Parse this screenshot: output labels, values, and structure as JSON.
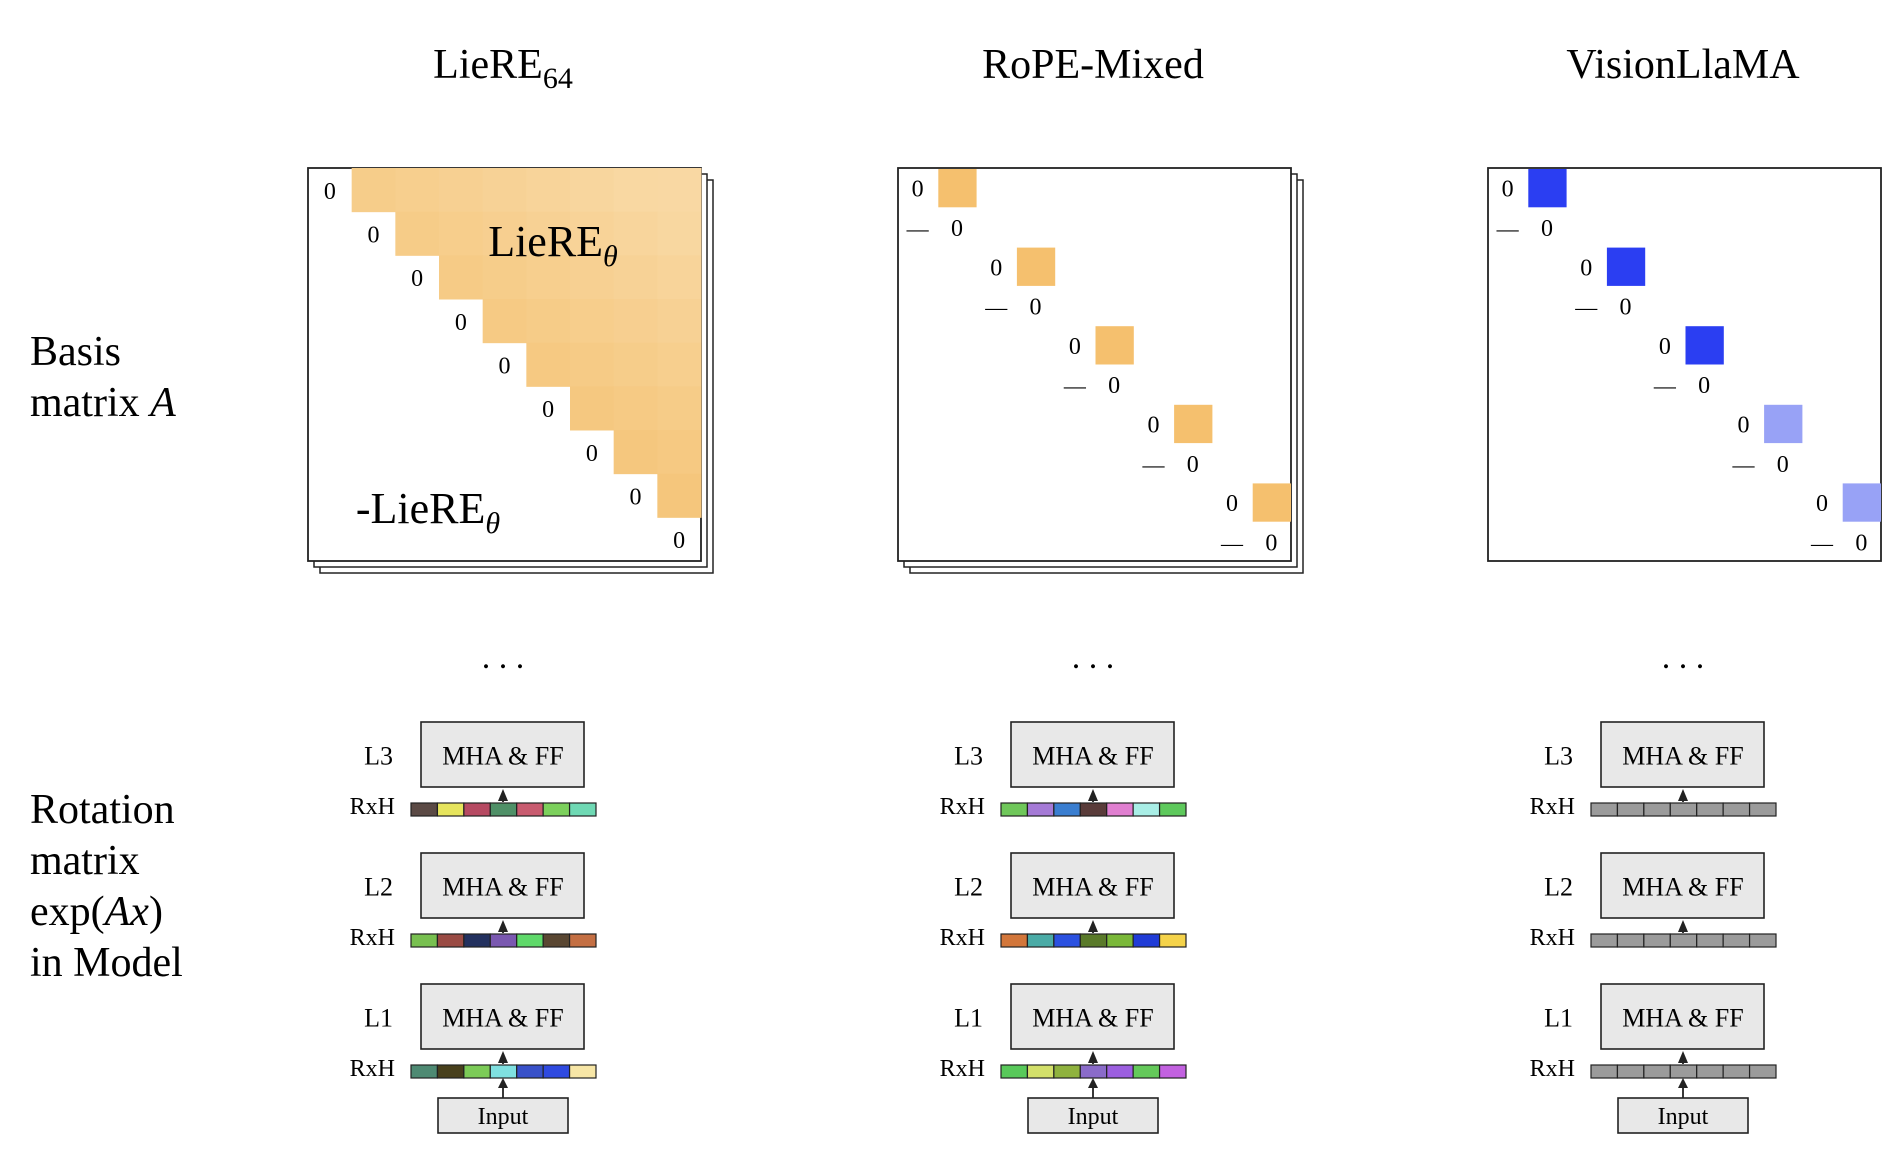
{
  "columns": [
    {
      "title": "LieRE",
      "title_subscript": "64",
      "matrix": {
        "style": "full",
        "upper_label": "LieRE",
        "lower_label": "-LieRE",
        "label_subscript": "θ",
        "diag": "0",
        "size": 9,
        "stacked": true
      },
      "block_colors": [],
      "layers": [
        "L3",
        "L2",
        "L1"
      ],
      "rh_label": "RxH",
      "mha_label": "MHA & FF",
      "input_label": "Input",
      "bars": [
        [
          "#5b4a45",
          "#e6e45d",
          "#b64a62",
          "#4f9067",
          "#c85b6f",
          "#7cd05c",
          "#6fd9b4"
        ],
        [
          "#78c050",
          "#9a4b44",
          "#23315f",
          "#7a58b0",
          "#5fd96a",
          "#5a4732",
          "#c46f43"
        ],
        [
          "#4e8a73",
          "#48401c",
          "#7ccb57",
          "#7fe0e0",
          "#3851c9",
          "#2f4ae0",
          "#f7e6a6"
        ]
      ]
    },
    {
      "title": "RoPE-Mixed",
      "title_subscript": "",
      "matrix": {
        "style": "block",
        "diag": "0",
        "neg": "—",
        "size": 10,
        "stacked": true
      },
      "block_colors": [
        "#f5c06e",
        "#f5c06e",
        "#f5c06e",
        "#f5c06e",
        "#f5c06e"
      ],
      "layers": [
        "L3",
        "L2",
        "L1"
      ],
      "rh_label": "RxH",
      "mha_label": "MHA & FF",
      "input_label": "Input",
      "bars": [
        [
          "#6fc75a",
          "#a57ad6",
          "#3a7ed0",
          "#5a3c3a",
          "#e07fd0",
          "#a9eee6",
          "#5ec95c"
        ],
        [
          "#d2763a",
          "#4aaba6",
          "#2b51e0",
          "#5a7a2a",
          "#7ab839",
          "#203cd6",
          "#f5d34a"
        ],
        [
          "#58c95a",
          "#d3e06a",
          "#8fb23e",
          "#8a6bc9",
          "#9c5fe0",
          "#64c95a",
          "#c261e0"
        ]
      ]
    },
    {
      "title": "VisionLlaMA",
      "title_subscript": "",
      "matrix": {
        "style": "block",
        "diag": "0",
        "neg": "—",
        "size": 10,
        "stacked": false
      },
      "block_colors": [
        "#2b3ef2",
        "#2b3ef2",
        "#2b3ef2",
        "#98a2f6",
        "#98a2f6"
      ],
      "layers": [
        "L3",
        "L2",
        "L1"
      ],
      "rh_label": "RxH",
      "mha_label": "MHA & FF",
      "input_label": "Input",
      "bars": [
        [
          "#9b9b9b",
          "#9b9b9b",
          "#9b9b9b",
          "#9b9b9b",
          "#9b9b9b",
          "#9b9b9b",
          "#9b9b9b"
        ],
        [
          "#9b9b9b",
          "#9b9b9b",
          "#9b9b9b",
          "#9b9b9b",
          "#9b9b9b",
          "#9b9b9b",
          "#9b9b9b"
        ],
        [
          "#9b9b9b",
          "#9b9b9b",
          "#9b9b9b",
          "#9b9b9b",
          "#9b9b9b",
          "#9b9b9b",
          "#9b9b9b"
        ]
      ]
    }
  ],
  "ellipsis": ". . .",
  "row_labels": {
    "basis_line1": "Basis",
    "basis_line2_text": "matrix ",
    "basis_line2_var": "A",
    "rotation_line1": "Rotation",
    "rotation_line2": "matrix",
    "rotation_line3_pre": "exp(",
    "rotation_line3_var": "Ax",
    "rotation_line3_post": ")",
    "rotation_line4": "in Model"
  },
  "colors": {
    "full_light": "#fbe3bb",
    "full_dark": "#f2b85c",
    "box_fill": "#e8e8e8",
    "stroke": "#222222"
  }
}
